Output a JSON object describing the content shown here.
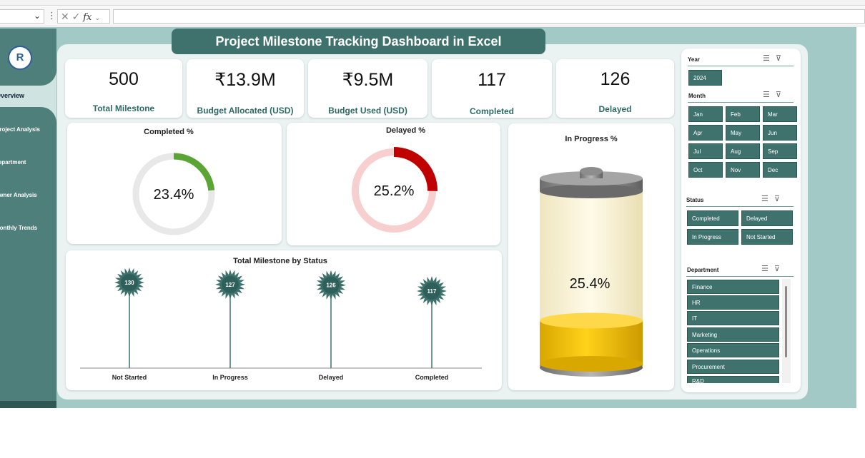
{
  "formula_bar": {
    "fx_label": "fx"
  },
  "sidebar": {
    "logo_text": "R",
    "items": [
      {
        "label": "Overview",
        "active": true
      },
      {
        "label": "Project Analysis"
      },
      {
        "label": "Department"
      },
      {
        "label": "Owner Analysis"
      },
      {
        "label": "Monthly Trends"
      }
    ]
  },
  "dashboard": {
    "title": "Project Milestone Tracking Dashboard in Excel"
  },
  "kpis": [
    {
      "value": "500",
      "label": "Total Milestone"
    },
    {
      "value": "₹13.9M",
      "label": "Budget Allocated (USD)"
    },
    {
      "value": "₹9.5M",
      "label": "Budget Used (USD)"
    },
    {
      "value": "117",
      "label": "Completed"
    },
    {
      "value": "126",
      "label": "Delayed"
    }
  ],
  "completed_chart": {
    "title": "Completed %",
    "value_label": "23.4%",
    "percent": 23.4,
    "color": "#5aa534",
    "track": "#e8e8e8"
  },
  "delayed_chart": {
    "title": "Delayed %",
    "value_label": "25.2%",
    "percent": 25.2,
    "color": "#c00000",
    "track": "#f7cfcf"
  },
  "inprogress_chart": {
    "title": "In Progress %",
    "value_label": "25.4%",
    "percent": 25.4
  },
  "chart_data": {
    "type": "bar",
    "title": "Total Milestone by Status",
    "categories": [
      "Not Started",
      "In Progress",
      "Delayed",
      "Completed"
    ],
    "values": [
      130,
      127,
      126,
      117
    ],
    "marker_color": "#3f726d"
  },
  "slicers": {
    "year": {
      "title": "Year",
      "items": [
        "2024"
      ]
    },
    "month": {
      "title": "Month",
      "items": [
        "Jan",
        "Feb",
        "Mar",
        "Apr",
        "May",
        "Jun",
        "Jul",
        "Aug",
        "Sep",
        "Oct",
        "Nov",
        "Dec"
      ]
    },
    "status": {
      "title": "Status",
      "items": [
        "Completed",
        "Delayed",
        "In Progress",
        "Not Started"
      ]
    },
    "department": {
      "title": "Department",
      "items": [
        "Finance",
        "HR",
        "IT",
        "Marketing",
        "Operations",
        "Procurement",
        "R&D"
      ]
    }
  }
}
